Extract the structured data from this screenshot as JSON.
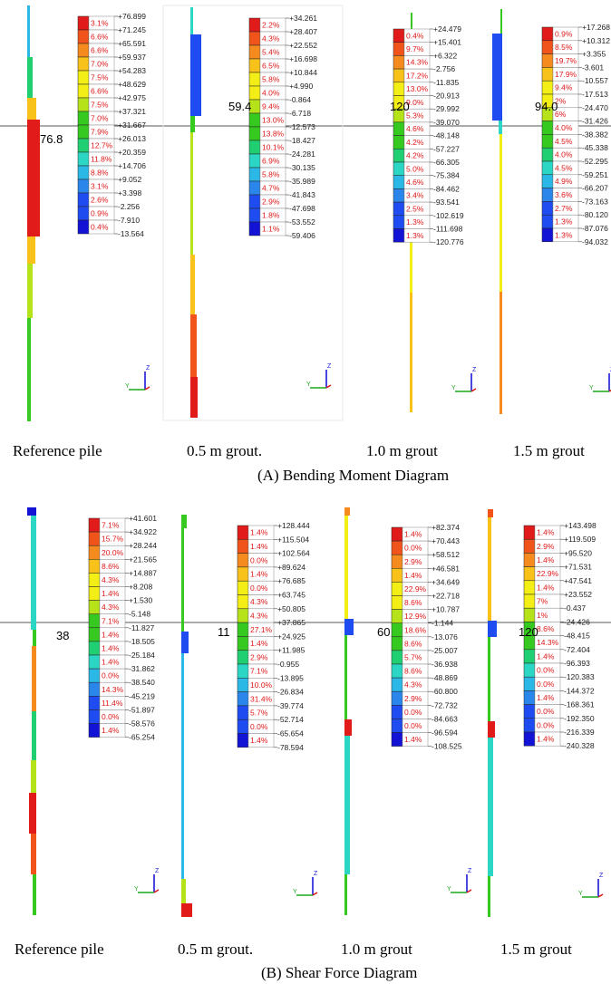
{
  "palette": [
    "#e11a1a",
    "#f0541a",
    "#f58a1e",
    "#f8c21a",
    "#f2ee16",
    "#b6e21a",
    "#36c91f",
    "#1fcf72",
    "#2cd6c4",
    "#2bb8e6",
    "#2a86ea",
    "#1f4cf0",
    "#1313d6"
  ],
  "sections": [
    {
      "title": "(A) Bending Moment Diagram",
      "panels": [
        {
          "label": "Reference pile",
          "peak": "76.8",
          "percents": [
            "3.1%",
            "6.6%",
            "6.6%",
            "7.0%",
            "7.5%",
            "6.6%",
            "7.5%",
            "7.0%",
            "7.9%",
            "12.7%",
            "11.8%",
            "8.8%",
            "3.1%",
            "2.6%",
            "0.9%",
            "0.4%"
          ],
          "values": [
            "+76.899",
            "+71.245",
            "+65.591",
            "+59.937",
            "+54.283",
            "+48.629",
            "+42.975",
            "+37.321",
            "+31.667",
            "+26.013",
            "+20.359",
            "+14.706",
            "+9.052",
            "+3.398",
            "-2.256",
            "-7.910",
            "-13.564"
          ]
        },
        {
          "label": "0.5 m grout.",
          "peak": "59.4",
          "percents": [
            "2.2%",
            "4.3%",
            "5.4%",
            "6.5%",
            "5.8%",
            "4.0%",
            "9.4%",
            "13.0%",
            "13.8%",
            "10.1%",
            "6.9%",
            "5.8%",
            "4.7%",
            "2.9%",
            "1.8%",
            "1.1%"
          ],
          "values": [
            "+34.261",
            "+28.407",
            "+22.552",
            "+16.698",
            "+10.844",
            "+4.990",
            "-0.864",
            "-6.718",
            "-12.573",
            "-18.427",
            "-24.281",
            "-30.135",
            "-35.989",
            "-41.843",
            "-47.698",
            "-53.552",
            "-59.406"
          ]
        },
        {
          "label": "1.0 m grout",
          "peak": "120",
          "percents": [
            "0.4%",
            "9.7%",
            "14.3%",
            "17.2%",
            "13.0%",
            "9.0%",
            "5.3%",
            "4.6%",
            "4.2%",
            "4.2%",
            "5.0%",
            "4.6%",
            "3.4%",
            "2.5%",
            "1.3%",
            "1.3%"
          ],
          "values": [
            "+24.479",
            "+15.401",
            "+6.322",
            "-2.756",
            "-11.835",
            "-20.913",
            "-29.992",
            "-39.070",
            "-48.148",
            "-57.227",
            "-66.305",
            "-75.384",
            "-84.462",
            "-93.541",
            "-102.619",
            "-111.698",
            "-120.776"
          ]
        },
        {
          "label": "1.5 m grout",
          "peak": "94.0",
          "percents": [
            "0.9%",
            "8.5%",
            "19.7%",
            "17.9%",
            "9.4%",
            "2%",
            "6%",
            "4.0%",
            "4.5%",
            "4.0%",
            "4.5%",
            "4.9%",
            "3.6%",
            "2.7%",
            "1.3%",
            "1.3%"
          ],
          "values": [
            "+17.268",
            "+10.312",
            "+3.355",
            "-3.601",
            "-10.557",
            "-17.513",
            "-24.470",
            "-31.426",
            "-38.382",
            "-45.338",
            "-52.295",
            "-59.251",
            "-66.207",
            "-73.163",
            "-80.120",
            "-87.076",
            "-94.032"
          ]
        }
      ]
    },
    {
      "title": "(B) Shear Force Diagram",
      "panels": [
        {
          "label": "Reference pile",
          "peak": "38",
          "percents": [
            "7.1%",
            "15.7%",
            "20.0%",
            "8.6%",
            "4.3%",
            "1.4%",
            "4.3%",
            "7.1%",
            "1.4%",
            "1.4%",
            "1.4%",
            "0.0%",
            "14.3%",
            "11.4%",
            "0.0%",
            "1.4%"
          ],
          "values": [
            "+41.601",
            "+34.922",
            "+28.244",
            "+21.565",
            "+14.887",
            "+8.208",
            "+1.530",
            "-5.148",
            "-11.827",
            "-18.505",
            "-25.184",
            "-31.862",
            "-38.540",
            "-45.219",
            "-51.897",
            "-58.576",
            "-65.254"
          ]
        },
        {
          "label": "0.5 m grout.",
          "peak": "11",
          "percents": [
            "1.4%",
            "1.4%",
            "0.0%",
            "1.4%",
            "0.0%",
            "4.3%",
            "4.3%",
            "27.1%",
            "1.4%",
            "2.9%",
            "7.1%",
            "10.0%",
            "31.4%",
            "5.7%",
            "0.0%",
            "1.4%"
          ],
          "values": [
            "+128.444",
            "+115.504",
            "+102.564",
            "+89.624",
            "+76.685",
            "+63.745",
            "+50.805",
            "+37.865",
            "+24.925",
            "+11.985",
            "-0.955",
            "-13.895",
            "-26.834",
            "-39.774",
            "-52.714",
            "-65.654",
            "-78.594"
          ]
        },
        {
          "label": "1.0 m grout",
          "peak": "60",
          "percents": [
            "1.4%",
            "0.0%",
            "2.9%",
            "1.4%",
            "22.9%",
            "8.6%",
            "12.9%",
            "18.6%",
            "8.6%",
            "5.7%",
            "8.6%",
            "4.3%",
            "2.9%",
            "0.0%",
            "0.0%",
            "1.4%"
          ],
          "values": [
            "+82.374",
            "+70.443",
            "+58.512",
            "+46.581",
            "+34.649",
            "+22.718",
            "+10.787",
            "-1.144",
            "-13.076",
            "-25.007",
            "-36.938",
            "-48.869",
            "-60.800",
            "-72.732",
            "-84.663",
            "-96.594",
            "-108.525"
          ]
        },
        {
          "label": "1.5 m grout",
          "peak": "120",
          "percents": [
            "1.4%",
            "2.9%",
            "1.4%",
            "22.9%",
            "1.4%",
            "7%",
            "1%",
            "8.6%",
            "14.3%",
            "1.4%",
            "0.0%",
            "0.0%",
            "1.4%",
            "0.0%",
            "0.0%",
            "1.4%"
          ],
          "values": [
            "+143.498",
            "+119.509",
            "+95.520",
            "+71.531",
            "+47.541",
            "+23.552",
            "-0.437",
            "-24.426",
            "-48.415",
            "-72.404",
            "-96.393",
            "-120.383",
            "-144.372",
            "-168.361",
            "-192.350",
            "-216.339",
            "-240.328"
          ]
        }
      ]
    }
  ]
}
